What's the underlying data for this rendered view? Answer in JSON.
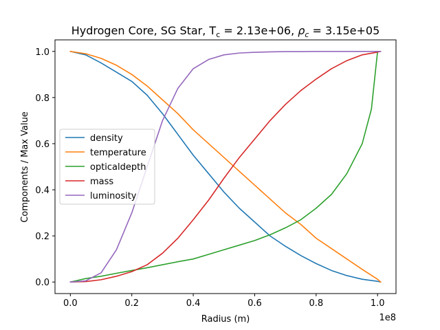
{
  "chart_data": {
    "type": "line",
    "title": {
      "prefix": "Hydrogen Core, SG Star, T",
      "tc_sub": "c",
      "tc_eq": " = 2.13e+06, ",
      "rho": "ρ",
      "rho_sub": "c",
      "rho_eq": " = 3.15e+05"
    },
    "xlabel": "Radius (m)",
    "ylabel": "Components / Max Value",
    "x_offset_label": "1e8",
    "xlim": [
      -0.05,
      1.06
    ],
    "ylim": [
      -0.05,
      1.05
    ],
    "x_ticks": [
      0.0,
      0.2,
      0.4,
      0.6,
      0.8,
      1.0
    ],
    "x_tick_labels": [
      "0.0",
      "0.2",
      "0.4",
      "0.6",
      "0.8",
      "1.0"
    ],
    "y_ticks": [
      0.0,
      0.2,
      0.4,
      0.6,
      0.8,
      1.0
    ],
    "y_tick_labels": [
      "0.0",
      "0.2",
      "0.4",
      "0.6",
      "0.8",
      "1.0"
    ],
    "grid": false,
    "legend_position": "center-left",
    "x": [
      0.0,
      0.05,
      0.1,
      0.15,
      0.2,
      0.25,
      0.3,
      0.35,
      0.4,
      0.45,
      0.5,
      0.55,
      0.6,
      0.65,
      0.7,
      0.75,
      0.8,
      0.85,
      0.9,
      0.95,
      1.0,
      1.01
    ],
    "series": [
      {
        "name": "density",
        "color": "#1f77b4",
        "x": [
          0.0,
          0.05,
          0.1,
          0.15,
          0.2,
          0.25,
          0.3,
          0.35,
          0.4,
          0.45,
          0.5,
          0.55,
          0.6,
          0.65,
          0.7,
          0.75,
          0.8,
          0.85,
          0.9,
          0.95,
          1.0,
          1.01
        ],
        "values": [
          1.0,
          0.985,
          0.95,
          0.91,
          0.87,
          0.81,
          0.73,
          0.64,
          0.55,
          0.47,
          0.39,
          0.32,
          0.26,
          0.2,
          0.155,
          0.115,
          0.08,
          0.05,
          0.028,
          0.012,
          0.003,
          0.0
        ]
      },
      {
        "name": "temperature",
        "color": "#ff7f0e",
        "x": [
          0.0,
          0.05,
          0.1,
          0.15,
          0.2,
          0.25,
          0.3,
          0.35,
          0.4,
          0.45,
          0.5,
          0.55,
          0.6,
          0.65,
          0.7,
          0.75,
          0.8,
          0.85,
          0.9,
          0.95,
          1.0,
          1.01
        ],
        "values": [
          1.0,
          0.99,
          0.97,
          0.94,
          0.9,
          0.85,
          0.79,
          0.73,
          0.66,
          0.6,
          0.54,
          0.48,
          0.42,
          0.36,
          0.3,
          0.25,
          0.19,
          0.145,
          0.1,
          0.055,
          0.012,
          0.0
        ]
      },
      {
        "name": "opticaldepth",
        "color": "#2ca02c",
        "x": [
          0.0,
          0.05,
          0.1,
          0.15,
          0.2,
          0.25,
          0.3,
          0.35,
          0.4,
          0.45,
          0.5,
          0.55,
          0.6,
          0.65,
          0.7,
          0.75,
          0.8,
          0.85,
          0.9,
          0.95,
          0.98,
          1.0
        ],
        "values": [
          0.0,
          0.015,
          0.025,
          0.038,
          0.05,
          0.062,
          0.075,
          0.088,
          0.1,
          0.12,
          0.14,
          0.16,
          0.18,
          0.205,
          0.235,
          0.27,
          0.32,
          0.38,
          0.47,
          0.6,
          0.75,
          1.0
        ]
      },
      {
        "name": "mass",
        "color": "#d62728",
        "x": [
          0.0,
          0.05,
          0.1,
          0.15,
          0.2,
          0.25,
          0.3,
          0.35,
          0.4,
          0.45,
          0.5,
          0.55,
          0.6,
          0.65,
          0.7,
          0.75,
          0.8,
          0.85,
          0.9,
          0.95,
          1.0,
          1.01
        ],
        "values": [
          0.0,
          0.002,
          0.01,
          0.025,
          0.045,
          0.075,
          0.125,
          0.19,
          0.27,
          0.355,
          0.45,
          0.54,
          0.62,
          0.7,
          0.77,
          0.83,
          0.88,
          0.925,
          0.96,
          0.985,
          0.997,
          1.0
        ]
      },
      {
        "name": "luminosity",
        "color": "#9467bd",
        "x": [
          0.0,
          0.05,
          0.1,
          0.15,
          0.2,
          0.25,
          0.3,
          0.35,
          0.4,
          0.45,
          0.5,
          0.55,
          0.6,
          0.65,
          0.7,
          0.75,
          0.8,
          0.85,
          0.9,
          0.95,
          1.0,
          1.01
        ],
        "values": [
          0.0,
          0.005,
          0.04,
          0.14,
          0.3,
          0.5,
          0.7,
          0.84,
          0.925,
          0.965,
          0.985,
          0.993,
          0.996,
          0.998,
          0.999,
          0.999,
          1.0,
          1.0,
          1.0,
          1.0,
          1.0,
          1.0
        ]
      }
    ]
  }
}
